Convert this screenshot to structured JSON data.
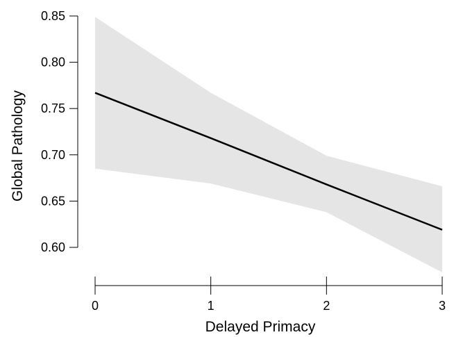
{
  "chart_data": {
    "type": "line",
    "title": "",
    "xlabel": "Delayed Primacy",
    "ylabel": "Global Pathology",
    "xlim": [
      0,
      3
    ],
    "ylim": [
      0.6,
      0.85
    ],
    "x_ticks": [
      0,
      1,
      2,
      3
    ],
    "x_tick_labels": [
      "0",
      "1",
      "2",
      "3"
    ],
    "y_ticks": [
      0.6,
      0.65,
      0.7,
      0.75,
      0.8,
      0.85
    ],
    "y_tick_labels": [
      "0.60",
      "0.65",
      "0.70",
      "0.75",
      "0.80",
      "0.85"
    ],
    "grid": false,
    "series": [
      {
        "x": [
          0,
          1,
          2,
          3
        ],
        "values": [
          0.767,
          0.718,
          0.668,
          0.619
        ],
        "band_upper": [
          0.849,
          0.767,
          0.699,
          0.666
        ],
        "band_lower": [
          0.685,
          0.669,
          0.638,
          0.573
        ]
      }
    ],
    "colors": {
      "line": "#000000",
      "band": "#e5e5e5",
      "axis": "#000000"
    }
  }
}
